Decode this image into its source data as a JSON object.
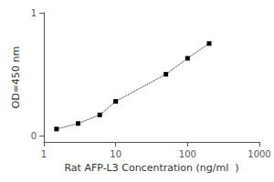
{
  "chart_data": {
    "type": "line",
    "x_label": "Rat AFP-L3 Concentration (ng/ml  )",
    "y_label": "OD=450 nm",
    "x": [
      1.5,
      3.0,
      6.0,
      10.0,
      50.0,
      100.0,
      200.0
    ],
    "values": [
      0.055,
      0.1,
      0.17,
      0.28,
      0.5,
      0.63,
      0.75
    ],
    "color": "black",
    "marker": "square",
    "line_style": "dotted",
    "log": "x",
    "xlim": [
      1,
      1000
    ],
    "xticks": [
      1,
      10,
      100,
      1000
    ],
    "ylim": [
      -0.05,
      1.0
    ],
    "yticks": [
      0,
      1
    ],
    "grid": false
  }
}
